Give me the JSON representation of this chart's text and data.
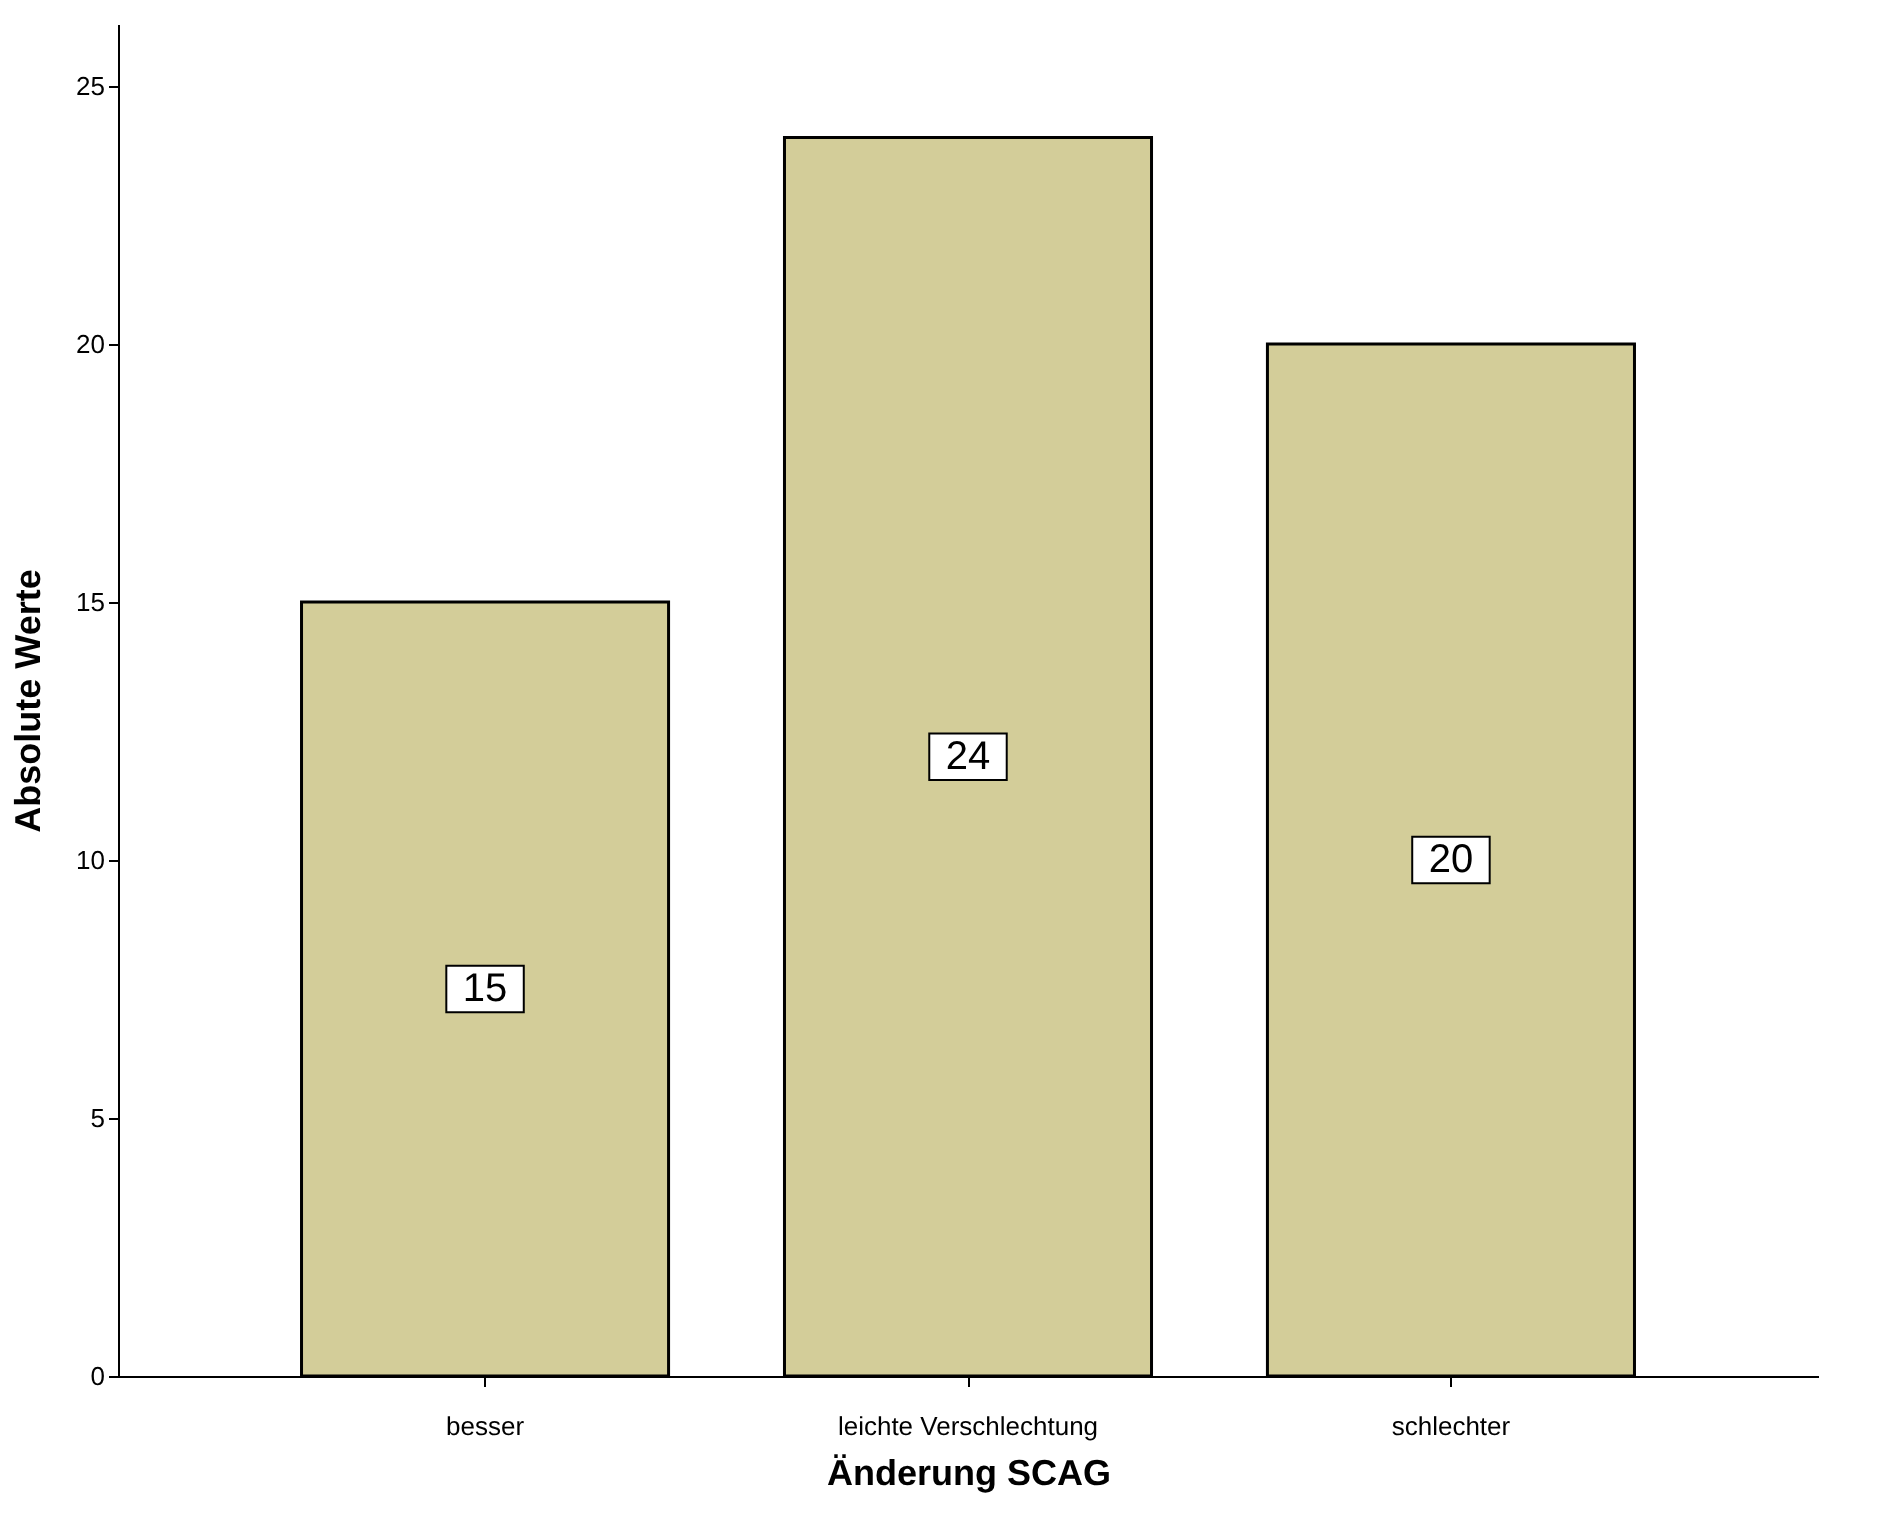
{
  "chart_data": {
    "type": "bar",
    "xlabel": "Änderung SCAG",
    "ylabel": "Absolute Werte",
    "categories": [
      "besser",
      "leichte Verschlechtung",
      "schlechter"
    ],
    "values": [
      15,
      24,
      20
    ],
    "color": "#d3cd99",
    "ylim": [
      0,
      26.2
    ],
    "yticks": [
      0,
      5,
      10,
      15,
      20,
      25
    ],
    "grid": false,
    "data_labels": true
  }
}
